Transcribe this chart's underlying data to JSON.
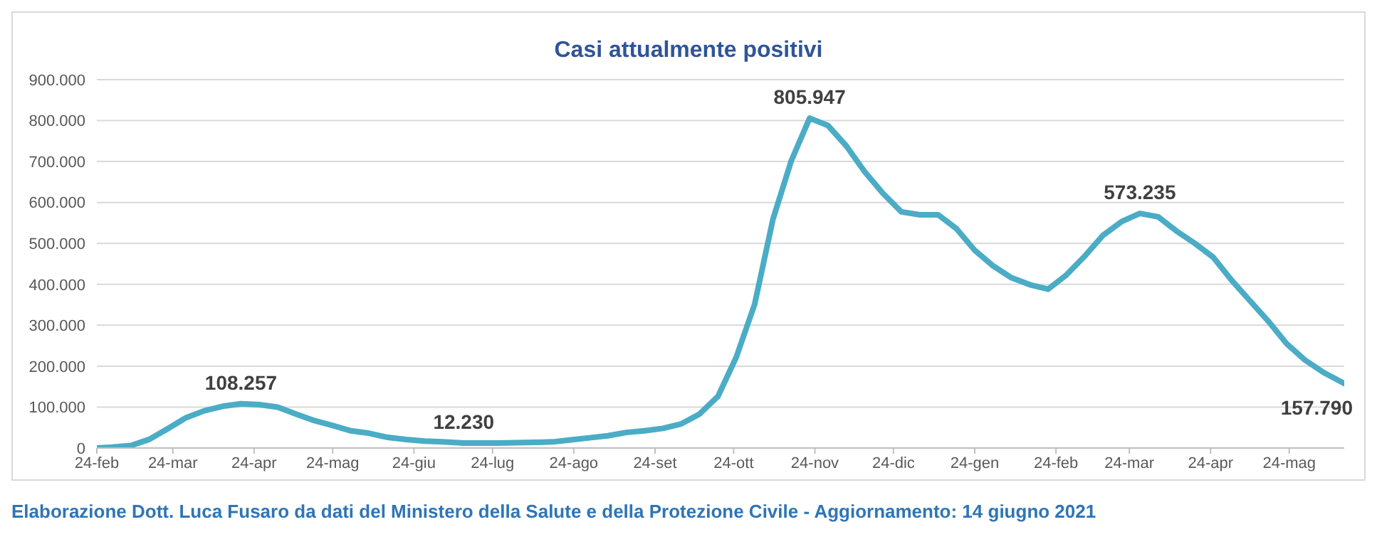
{
  "chart_data": {
    "type": "line",
    "title": "Casi attualmente positivi",
    "x": [
      "2020-02-24",
      "2020-03-01",
      "2020-03-08",
      "2020-03-15",
      "2020-03-22",
      "2020-03-29",
      "2020-04-05",
      "2020-04-12",
      "2020-04-19",
      "2020-04-26",
      "2020-05-03",
      "2020-05-10",
      "2020-05-17",
      "2020-05-24",
      "2020-05-31",
      "2020-06-07",
      "2020-06-14",
      "2020-06-21",
      "2020-06-28",
      "2020-07-05",
      "2020-07-13",
      "2020-07-19",
      "2020-07-26",
      "2020-08-02",
      "2020-08-09",
      "2020-08-16",
      "2020-08-23",
      "2020-08-30",
      "2020-09-06",
      "2020-09-13",
      "2020-09-20",
      "2020-09-27",
      "2020-10-04",
      "2020-10-11",
      "2020-10-18",
      "2020-10-25",
      "2020-11-01",
      "2020-11-08",
      "2020-11-15",
      "2020-11-22",
      "2020-11-29",
      "2020-12-06",
      "2020-12-13",
      "2020-12-20",
      "2020-12-27",
      "2021-01-03",
      "2021-01-10",
      "2021-01-17",
      "2021-01-24",
      "2021-01-31",
      "2021-02-07",
      "2021-02-14",
      "2021-02-21",
      "2021-02-28",
      "2021-03-07",
      "2021-03-14",
      "2021-03-21",
      "2021-03-28",
      "2021-04-04",
      "2021-04-11",
      "2021-04-18",
      "2021-04-25",
      "2021-05-02",
      "2021-05-09",
      "2021-05-16",
      "2021-05-23",
      "2021-05-30",
      "2021-06-06",
      "2021-06-14"
    ],
    "series": [
      {
        "color": "#4bacc6",
        "values": [
          0,
          2000,
          6000,
          21000,
          47000,
          74000,
          91000,
          102000,
          108257,
          106000,
          100000,
          83000,
          67000,
          55000,
          42000,
          36000,
          26000,
          21000,
          17000,
          15000,
          12230,
          12000,
          12000,
          13000,
          14000,
          15000,
          20000,
          25000,
          30000,
          38000,
          42000,
          48000,
          59000,
          83000,
          126000,
          222000,
          351000,
          559000,
          702000,
          805947,
          788000,
          738000,
          675000,
          622000,
          577000,
          570000,
          570000,
          536000,
          483000,
          445000,
          416000,
          399000,
          388000,
          423000,
          469000,
          520000,
          553000,
          573235,
          565000,
          530000,
          500000,
          466000,
          410000,
          360000,
          310000,
          255000,
          215000,
          185000,
          157790
        ]
      }
    ],
    "xlim": [
      "2020-02-24",
      "2021-06-14"
    ],
    "xticks": [
      {
        "value": "2020-02-24",
        "label": "24-feb"
      },
      {
        "value": "2020-03-24",
        "label": "24-mar"
      },
      {
        "value": "2020-04-24",
        "label": "24-apr"
      },
      {
        "value": "2020-05-24",
        "label": "24-mag"
      },
      {
        "value": "2020-06-24",
        "label": "24-giu"
      },
      {
        "value": "2020-07-24",
        "label": "24-lug"
      },
      {
        "value": "2020-08-24",
        "label": "24-ago"
      },
      {
        "value": "2020-09-24",
        "label": "24-set"
      },
      {
        "value": "2020-10-24",
        "label": "24-ott"
      },
      {
        "value": "2020-11-24",
        "label": "24-nov"
      },
      {
        "value": "2020-12-24",
        "label": "24-dic"
      },
      {
        "value": "2021-01-24",
        "label": "24-gen"
      },
      {
        "value": "2021-02-24",
        "label": "24-feb"
      },
      {
        "value": "2021-03-24",
        "label": "24-mar"
      },
      {
        "value": "2021-04-24",
        "label": "24-apr"
      },
      {
        "value": "2021-05-24",
        "label": "24-mag"
      }
    ],
    "ylim": [
      0,
      900000
    ],
    "yticks": [
      0,
      {
        "value": 100000,
        "label": "100.000"
      },
      {
        "value": 200000,
        "label": "200.000"
      },
      {
        "value": 300000,
        "label": "300.000"
      },
      {
        "value": 400000,
        "label": "400.000"
      },
      {
        "value": 500000,
        "label": "500.000"
      },
      {
        "value": 600000,
        "label": "600.000"
      },
      {
        "value": 700000,
        "label": "700.000"
      },
      {
        "value": 800000,
        "label": "800.000"
      },
      {
        "value": 900000,
        "label": "900.000"
      }
    ],
    "grid": "y",
    "marker": "none",
    "line_style": "solid",
    "annotations": [
      {
        "text": "108.257",
        "x": "2020-04-19",
        "y": 108257
      },
      {
        "text": "12.230",
        "x": "2020-07-13",
        "y": 12230
      },
      {
        "text": "805.947",
        "x": "2020-11-22",
        "y": 805947
      },
      {
        "text": "573.235",
        "x": "2021-03-28",
        "y": 573235
      },
      {
        "text": "157.790",
        "x": "2021-06-14",
        "y": 157790
      },
      "Elaborazione Dott. Luca Fusaro da dati del Ministero della Salute e della Protezione Civile - Aggiornamento: 14 giugno 2021"
    ]
  }
}
